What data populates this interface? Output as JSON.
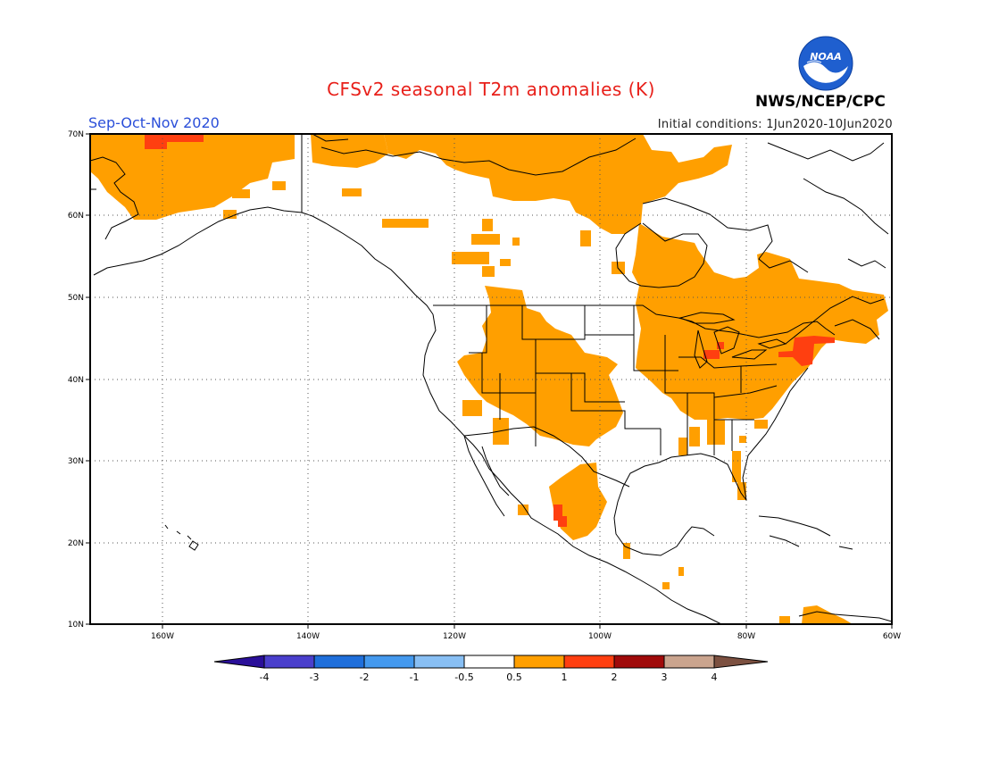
{
  "header": {
    "title": "CFSv2 seasonal T2m anomalies (K)",
    "season": "Sep-Oct-Nov 2020",
    "initial_conditions": "Initial conditions: 1Jun2020-10Jun2020",
    "agency": "NWS/NCEP/CPC",
    "logo_text": "NOAA"
  },
  "axes": {
    "lat_labels": [
      "70N",
      "60N",
      "50N",
      "40N",
      "30N",
      "20N",
      "10N"
    ],
    "lon_labels": [
      "160W",
      "140W",
      "120W",
      "100W",
      "80W",
      "60W"
    ]
  },
  "colorbar": {
    "labels": [
      "-4",
      "-3",
      "-2",
      "-1",
      "-0.5",
      "0.5",
      "1",
      "2",
      "3",
      "4"
    ],
    "colors": [
      "#2a0f99",
      "#4a3fcc",
      "#1f6fdb",
      "#4499ee",
      "#88bff4",
      "#ffffff",
      "#ff9f00",
      "#ff3f10",
      "#a00a0a",
      "#caa48e",
      "#7c5040"
    ]
  },
  "colors": {
    "anomaly_0_5_to_1": "#ff9f00",
    "anomaly_1_to_2": "#ff3f10",
    "title": "#e8201a",
    "season": "#2b4fd9"
  }
}
